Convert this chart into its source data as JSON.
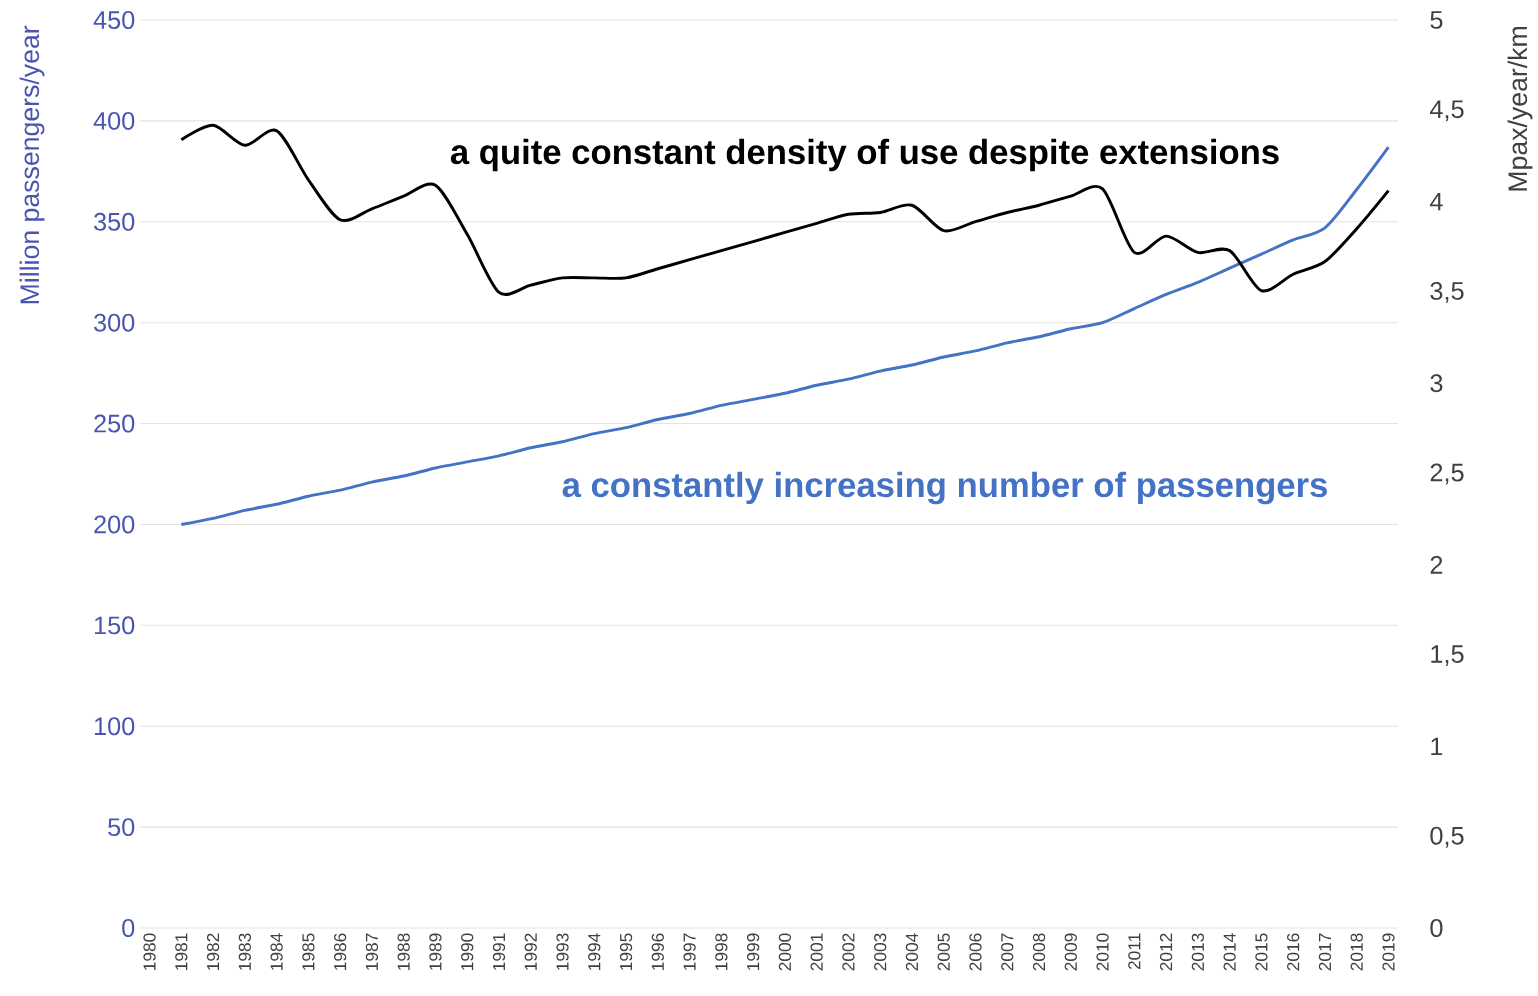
{
  "chart_data": {
    "type": "line",
    "categories": [
      "1980",
      "1981",
      "1982",
      "1983",
      "1984",
      "1985",
      "1986",
      "1987",
      "1988",
      "1989",
      "1990",
      "1991",
      "1992",
      "1993",
      "1994",
      "1995",
      "1996",
      "1997",
      "1998",
      "1999",
      "2000",
      "2001",
      "2002",
      "2003",
      "2004",
      "2005",
      "2006",
      "2007",
      "2008",
      "2009",
      "2010",
      "2011",
      "2012",
      "2013",
      "2014",
      "2015",
      "2016",
      "2017",
      "2018",
      "2019"
    ],
    "series": [
      {
        "color": "#4472c4",
        "axis": "y",
        "values": [
          null,
          200,
          203,
          207,
          210,
          214,
          217,
          221,
          224,
          228,
          231,
          234,
          238,
          241,
          245,
          248,
          252,
          255,
          259,
          262,
          265,
          269,
          272,
          276,
          279,
          283,
          286,
          290,
          293,
          297,
          300,
          307,
          314,
          320,
          327,
          334,
          341,
          347,
          366,
          387
        ]
      },
      {
        "color": "#000000",
        "axis": "y2",
        "values": [
          null,
          4.34,
          4.42,
          4.31,
          4.39,
          4.12,
          3.9,
          3.96,
          4.03,
          4.09,
          3.82,
          3.5,
          3.54,
          3.58,
          3.58,
          3.58,
          3.63,
          3.68,
          3.73,
          3.78,
          3.83,
          3.88,
          3.93,
          3.94,
          3.98,
          3.84,
          3.89,
          3.94,
          3.98,
          4.03,
          4.07,
          3.72,
          3.81,
          3.72,
          3.73,
          3.51,
          3.6,
          3.67,
          3.85,
          4.06
        ]
      }
    ],
    "ylabel": "Million passengers/year",
    "y2label": "Mpax/year/km",
    "ylim": [
      0,
      450
    ],
    "yticks": [
      0,
      50,
      100,
      150,
      200,
      250,
      300,
      350,
      400,
      450
    ],
    "y2lim": [
      0,
      5
    ],
    "y2ticks": [
      0,
      {
        "value": 0.5,
        "label": "0,5"
      },
      1,
      {
        "value": 1.5,
        "label": "1,5"
      },
      2,
      {
        "value": 2.5,
        "label": "2,5"
      },
      3,
      {
        "value": 3.5,
        "label": "3,5"
      },
      4,
      {
        "value": 4.5,
        "label": "4,5"
      },
      5
    ],
    "annotations": [
      "a quite constant density of use despite extensions",
      "a constantly increasing number of passengers"
    ],
    "grid": "y"
  }
}
